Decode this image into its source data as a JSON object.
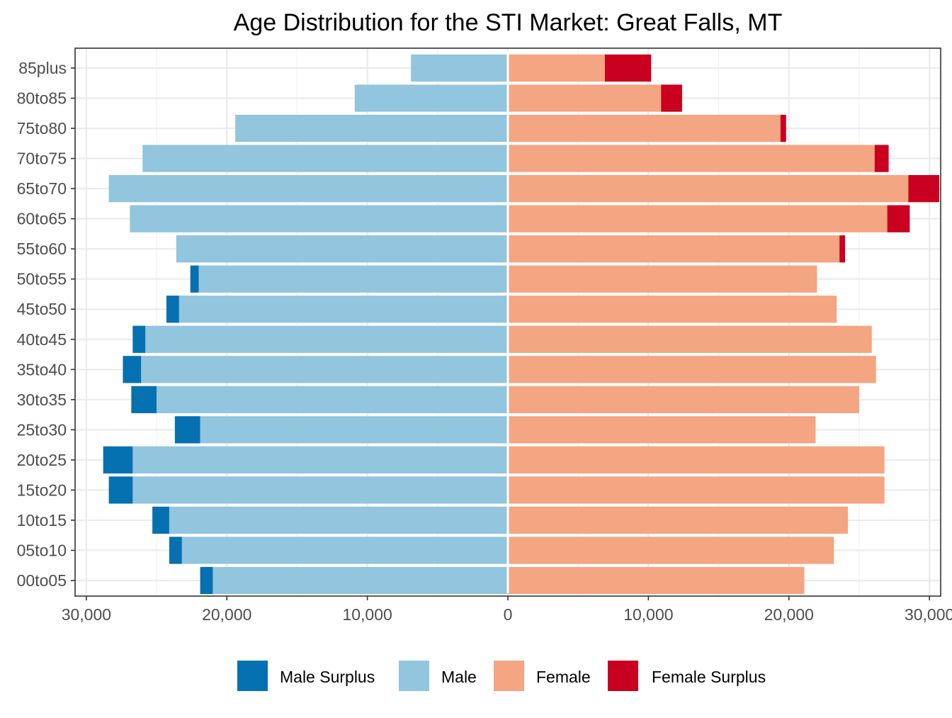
{
  "chart_data": {
    "type": "bar",
    "orientation": "horizontal",
    "layout": "population-pyramid",
    "title": "Age Distribution for the STI Market: Great Falls, MT",
    "categories": [
      "85plus",
      "80to85",
      "75to80",
      "70to75",
      "65to70",
      "60to65",
      "55to60",
      "50to55",
      "45to50",
      "40to45",
      "35to40",
      "30to35",
      "25to30",
      "20to25",
      "15to20",
      "10to15",
      "05to10",
      "00to05"
    ],
    "xlim": [
      -30800,
      30800
    ],
    "x_ticks": [
      -30000,
      -20000,
      -10000,
      0,
      10000,
      20000,
      30000
    ],
    "x_tick_labels": [
      "30,000",
      "20,000",
      "10,000",
      "0",
      "10,000",
      "20,000",
      "30,000"
    ],
    "grid": true,
    "legend_position": "bottom",
    "legend": [
      "Male Surplus",
      "Male",
      "Female",
      "Female Surplus"
    ],
    "series": [
      {
        "name": "Male",
        "color": "#92c5de",
        "side": "left",
        "values": [
          6900,
          10900,
          19400,
          26000,
          28400,
          26900,
          23600,
          22000,
          23400,
          25800,
          26100,
          25000,
          21900,
          26700,
          26700,
          24100,
          23200,
          21000
        ]
      },
      {
        "name": "Male Surplus",
        "color": "#0571b0",
        "side": "left",
        "values": [
          0,
          0,
          0,
          0,
          0,
          0,
          0,
          600,
          900,
          900,
          1300,
          1800,
          1800,
          2100,
          1700,
          1200,
          900,
          900
        ]
      },
      {
        "name": "Female",
        "color": "#f4a582",
        "side": "right",
        "values": [
          6900,
          10900,
          19400,
          26100,
          28500,
          27000,
          23600,
          22000,
          23400,
          25900,
          26200,
          25000,
          21900,
          26800,
          26800,
          24200,
          23200,
          21100
        ]
      },
      {
        "name": "Female Surplus",
        "color": "#ca0020",
        "side": "right",
        "values": [
          3300,
          1500,
          400,
          1000,
          2200,
          1600,
          400,
          0,
          0,
          0,
          0,
          0,
          0,
          0,
          0,
          0,
          0,
          0
        ]
      }
    ]
  }
}
